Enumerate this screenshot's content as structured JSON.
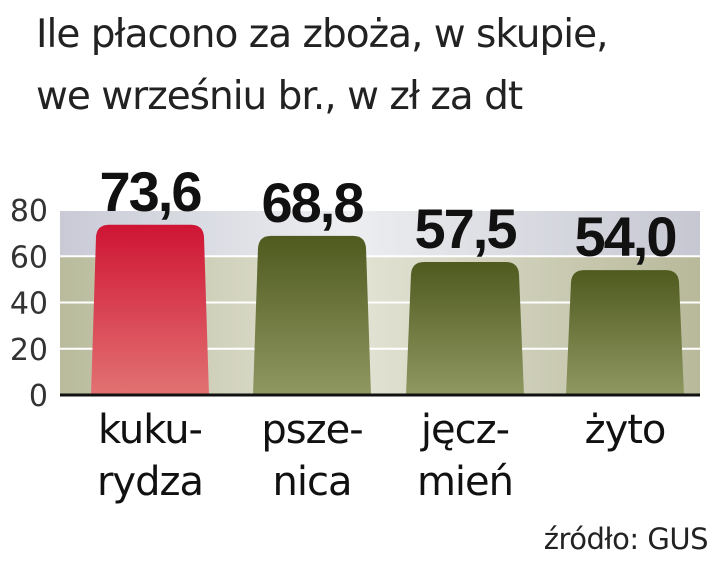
{
  "title_lines": [
    "Ile płacono za zboża, w skupie,",
    "we wrześniu br., w zł za dt"
  ],
  "source": "źródło: GUS",
  "chart_data": {
    "type": "bar",
    "categories": [
      [
        "kuku-",
        "rydza"
      ],
      [
        "psze-",
        "nica"
      ],
      [
        "jęcz-",
        "mień"
      ],
      [
        "żyto"
      ]
    ],
    "values": [
      73.6,
      68.8,
      57.5,
      54.0
    ],
    "value_labels": [
      "73,6",
      "68,8",
      "57,5",
      "54,0"
    ],
    "ylim": [
      0,
      80
    ],
    "yticks": [
      "0",
      "20",
      "40",
      "60",
      "80"
    ],
    "grid": true,
    "colors": {
      "highlight": "#d0203a",
      "bar": "#5a6428"
    }
  }
}
